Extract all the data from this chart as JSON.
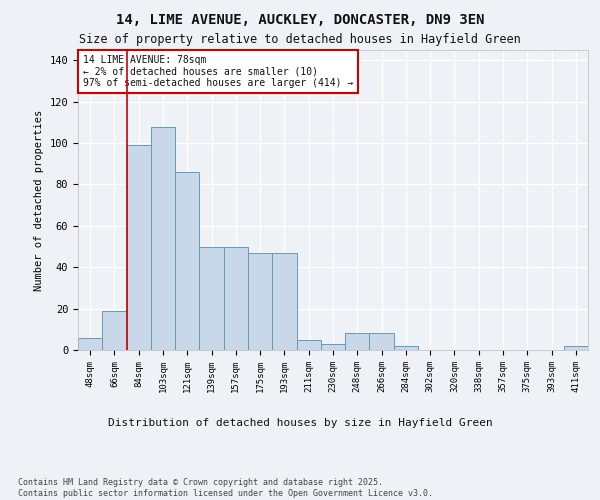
{
  "title_line1": "14, LIME AVENUE, AUCKLEY, DONCASTER, DN9 3EN",
  "title_line2": "Size of property relative to detached houses in Hayfield Green",
  "xlabel": "Distribution of detached houses by size in Hayfield Green",
  "ylabel": "Number of detached properties",
  "categories": [
    "48sqm",
    "66sqm",
    "84sqm",
    "103sqm",
    "121sqm",
    "139sqm",
    "157sqm",
    "175sqm",
    "193sqm",
    "211sqm",
    "230sqm",
    "248sqm",
    "266sqm",
    "284sqm",
    "302sqm",
    "320sqm",
    "338sqm",
    "357sqm",
    "375sqm",
    "393sqm",
    "411sqm"
  ],
  "values": [
    6,
    19,
    99,
    108,
    86,
    50,
    50,
    47,
    47,
    5,
    3,
    8,
    8,
    2,
    0,
    0,
    0,
    0,
    0,
    0,
    2
  ],
  "bar_color": "#c8d8e8",
  "bar_edge_color": "#6699bb",
  "vline_x": 1.5,
  "vline_color": "#cc0000",
  "annotation_title": "14 LIME AVENUE: 78sqm",
  "annotation_line2": "← 2% of detached houses are smaller (10)",
  "annotation_line3": "97% of semi-detached houses are larger (414) →",
  "annotation_box_color": "#cc0000",
  "ylim": [
    0,
    145
  ],
  "yticks": [
    0,
    20,
    40,
    60,
    80,
    100,
    120,
    140
  ],
  "footer": "Contains HM Land Registry data © Crown copyright and database right 2025.\nContains public sector information licensed under the Open Government Licence v3.0.",
  "background_color": "#eef2f6",
  "plot_bg_color": "#eef2f6",
  "grid_color": "#ffffff"
}
